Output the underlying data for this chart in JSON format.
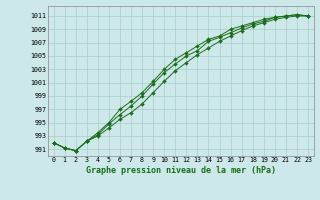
{
  "title": "Graphe pression niveau de la mer (hPa)",
  "yticks": [
    991,
    993,
    995,
    997,
    999,
    1001,
    1003,
    1005,
    1007,
    1009,
    1011
  ],
  "xticks": [
    0,
    1,
    2,
    3,
    4,
    5,
    6,
    7,
    8,
    9,
    10,
    11,
    12,
    13,
    14,
    15,
    16,
    17,
    18,
    19,
    20,
    21,
    22,
    23
  ],
  "ylim": [
    990.0,
    1012.5
  ],
  "xlim": [
    -0.5,
    23.5
  ],
  "bg_color": "#cce8e8",
  "grid_color": "#aacccc",
  "line_color": "#1a6e1a",
  "series": [
    [
      992.0,
      991.2,
      990.8,
      992.2,
      993.2,
      994.8,
      996.2,
      997.5,
      999.0,
      1000.8,
      1002.5,
      1003.8,
      1005.0,
      1005.8,
      1007.2,
      1007.8,
      1008.5,
      1009.2,
      1009.8,
      1010.2,
      1010.8,
      1011.0,
      1011.2,
      1011.0
    ],
    [
      992.0,
      991.2,
      990.8,
      992.2,
      993.5,
      995.0,
      997.0,
      998.2,
      999.5,
      1001.2,
      1003.0,
      1004.5,
      1005.5,
      1006.5,
      1007.5,
      1008.0,
      1009.0,
      1009.5,
      1010.0,
      1010.5,
      1010.8,
      1011.0,
      1011.2,
      1011.0
    ],
    [
      992.0,
      991.2,
      990.8,
      992.2,
      993.0,
      994.2,
      995.5,
      996.5,
      997.8,
      999.5,
      1001.2,
      1002.8,
      1004.0,
      1005.2,
      1006.2,
      1007.2,
      1008.0,
      1008.8,
      1009.5,
      1010.0,
      1010.5,
      1010.8,
      1011.0,
      1011.0
    ]
  ],
  "figsize": [
    3.2,
    2.0
  ],
  "dpi": 100
}
